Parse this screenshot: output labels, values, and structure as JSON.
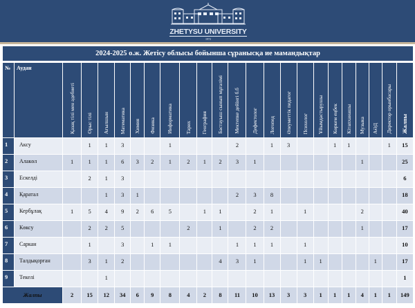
{
  "header": {
    "logo_name": "ZHETYSU UNIVERSITY",
    "logo_year": "1972"
  },
  "table": {
    "title": "2024-2025 о.ж. Жетісу облысы бойынша сұранысқа ие мамандықтар",
    "col_no": "№",
    "col_district": "Аудан",
    "columns": [
      "Қазақ тілі  мен әдебиеті",
      "Орыс тілі",
      "Ағылшын",
      "Математика",
      "Химия",
      "Физика",
      "Информатика",
      "Тарих",
      "География",
      "Бастауыш сынып мұғалімі",
      "Мектепке дейінгі б.б",
      "Дефектолог",
      "Логопед",
      "Әлеуметтік  педагог",
      "Психолог",
      "Ұйымдастырушы",
      "Көркем еңбек",
      "Кітапханашы",
      "Музыка",
      "АӘД",
      "Директор орынбасары",
      "Жалпы"
    ],
    "rows": [
      {
        "no": "1",
        "district": "Аксу",
        "values": [
          "",
          "1",
          "1",
          "3",
          "",
          "",
          "1",
          "",
          "",
          "",
          "2",
          "",
          "1",
          "3",
          "",
          "",
          "1",
          "1",
          "",
          "",
          "1",
          "15"
        ]
      },
      {
        "no": "2",
        "district": "Алакөл",
        "values": [
          "1",
          "1",
          "1",
          "6",
          "3",
          "2",
          "1",
          "2",
          "1",
          "2",
          "3",
          "1",
          "",
          "",
          "",
          "",
          "",
          "",
          "1",
          "",
          "",
          "25"
        ]
      },
      {
        "no": "3",
        "district": "Ескелді",
        "values": [
          "",
          "2",
          "1",
          "3",
          "",
          "",
          "",
          "",
          "",
          "",
          "",
          "",
          "",
          "",
          "",
          "",
          "",
          "",
          "",
          "",
          "",
          "6"
        ]
      },
      {
        "no": "4",
        "district": "Қаратал",
        "values": [
          "",
          "",
          "1",
          "3",
          "1",
          "",
          "",
          "",
          "",
          "",
          "2",
          "3",
          "8",
          "",
          "",
          "",
          "",
          "",
          "",
          "",
          "",
          "18"
        ]
      },
      {
        "no": "5",
        "district": "Кербұлақ",
        "values": [
          "1",
          "5",
          "4",
          "9",
          "2",
          "6",
          "5",
          "",
          "1",
          "1",
          "",
          "2",
          "1",
          "",
          "1",
          "",
          "",
          "",
          "2",
          "",
          "",
          "40"
        ]
      },
      {
        "no": "6",
        "district": "Көксу",
        "values": [
          "",
          "2",
          "2",
          "5",
          "",
          "",
          "",
          "2",
          "",
          "1",
          "",
          "2",
          "2",
          "",
          "",
          "",
          "",
          "",
          "1",
          "",
          "",
          "17"
        ]
      },
      {
        "no": "7",
        "district": "Саркан",
        "values": [
          "",
          "1",
          "",
          "3",
          "",
          "1",
          "1",
          "",
          "",
          "",
          "1",
          "1",
          "1",
          "",
          "1",
          "",
          "",
          "",
          "",
          "",
          "",
          "10"
        ]
      },
      {
        "no": "8",
        "district": "Талдықорған",
        "values": [
          "",
          "3",
          "1",
          "2",
          "",
          "",
          "",
          "",
          "",
          "4",
          "3",
          "1",
          "",
          "",
          "1",
          "1",
          "",
          "",
          "",
          "1",
          "",
          "17"
        ]
      },
      {
        "no": "9",
        "district": "Текелі",
        "values": [
          "",
          "",
          "1",
          "",
          "",
          "",
          "",
          "",
          "",
          "",
          "",
          "",
          "",
          "",
          "",
          "",
          "",
          "",
          "",
          "",
          "",
          "1"
        ]
      }
    ],
    "total_label": "Жалпы",
    "totals": [
      "2",
      "15",
      "12",
      "34",
      "6",
      "9",
      "8",
      "4",
      "2",
      "8",
      "11",
      "10",
      "13",
      "3",
      "3",
      "1",
      "1",
      "1",
      "4",
      "1",
      "1",
      "149"
    ]
  },
  "colors": {
    "header_bg": "#2d4b76",
    "accent_line": "#c6b59a",
    "row_light": "#e9edf4",
    "row_dark": "#d0d8e7"
  }
}
